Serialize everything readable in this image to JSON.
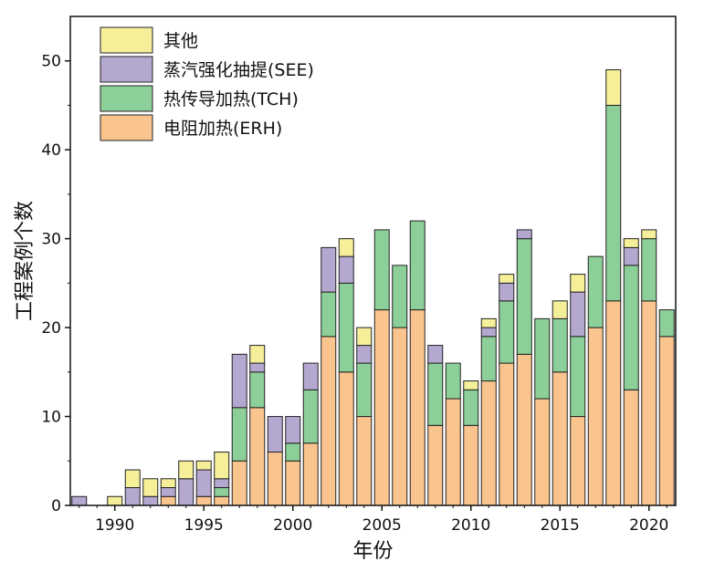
{
  "chart_data": {
    "type": "bar",
    "stacked": true,
    "xlabel": "年份",
    "ylabel": "工程案例个数",
    "xlim": [
      1987.5,
      2021.5
    ],
    "ylim": [
      0,
      55
    ],
    "x_ticks": [
      1990,
      1995,
      2000,
      2005,
      2010,
      2015,
      2020
    ],
    "y_ticks": [
      0,
      10,
      20,
      30,
      40,
      50
    ],
    "grid": false,
    "legend_position": "top-left",
    "years": [
      1988,
      1989,
      1990,
      1991,
      1992,
      1993,
      1994,
      1995,
      1996,
      1997,
      1998,
      1999,
      2000,
      2001,
      2002,
      2003,
      2004,
      2005,
      2006,
      2007,
      2008,
      2009,
      2010,
      2011,
      2012,
      2013,
      2014,
      2015,
      2016,
      2017,
      2018,
      2019,
      2020,
      2021
    ],
    "series": [
      {
        "name": "电阻加热(ERH)",
        "color": "#fac48e",
        "values": [
          0,
          0,
          0,
          0,
          0,
          1,
          0,
          1,
          1,
          5,
          11,
          6,
          5,
          7,
          19,
          15,
          10,
          22,
          20,
          22,
          9,
          12,
          9,
          14,
          16,
          17,
          12,
          15,
          10,
          20,
          23,
          13,
          23,
          19
        ]
      },
      {
        "name": "热传导加热(TCH)",
        "color": "#8dcf98",
        "values": [
          0,
          0,
          0,
          0,
          0,
          0,
          0,
          0,
          1,
          6,
          4,
          0,
          2,
          6,
          5,
          10,
          6,
          9,
          7,
          10,
          7,
          4,
          4,
          5,
          7,
          13,
          9,
          6,
          9,
          8,
          22,
          14,
          7,
          3
        ]
      },
      {
        "name": "蒸汽强化抽提(SEE)",
        "color": "#b4a7d0",
        "values": [
          1,
          0,
          0,
          2,
          1,
          1,
          3,
          3,
          1,
          6,
          1,
          4,
          3,
          3,
          5,
          3,
          2,
          0,
          0,
          0,
          2,
          0,
          0,
          1,
          2,
          1,
          0,
          0,
          5,
          0,
          0,
          2,
          0,
          0
        ]
      },
      {
        "name": "其他",
        "color": "#f5ef9a",
        "values": [
          0,
          0,
          1,
          2,
          2,
          1,
          2,
          1,
          3,
          0,
          2,
          0,
          0,
          0,
          0,
          2,
          2,
          0,
          0,
          0,
          0,
          0,
          1,
          1,
          1,
          0,
          0,
          2,
          2,
          0,
          4,
          1,
          1,
          0
        ]
      }
    ],
    "legend_order": [
      "其他",
      "蒸汽强化抽提(SEE)",
      "热传导加热(TCH)",
      "电阻加热(ERH)"
    ]
  }
}
